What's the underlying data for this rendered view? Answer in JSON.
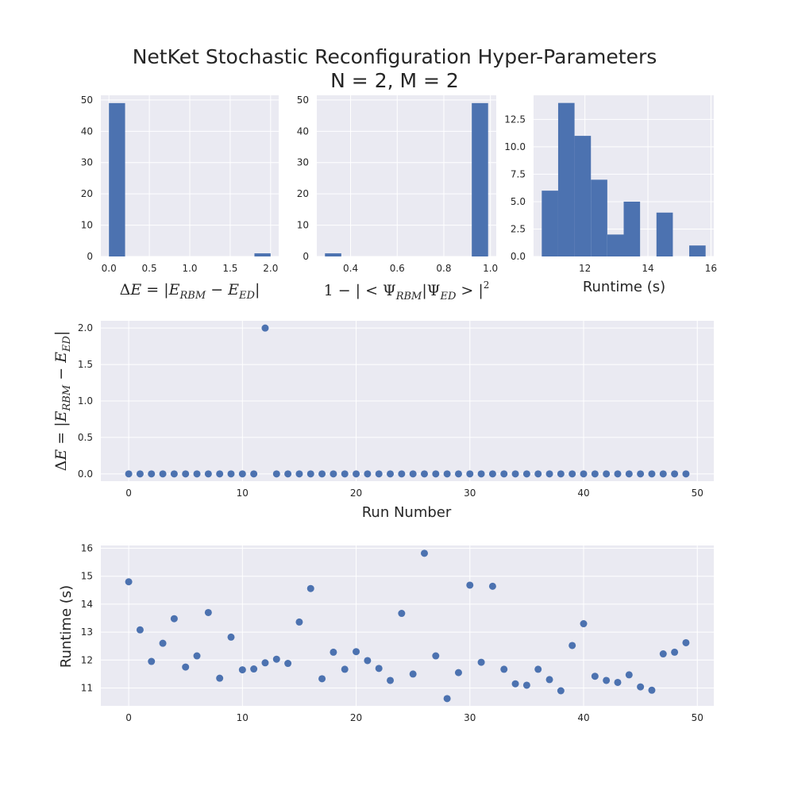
{
  "title": {
    "line1": "NetKet Stochastic Reconfiguration Hyper-Parameters",
    "line2": "N = 2, M = 2"
  },
  "colors": {
    "bar": "#4c72b0",
    "point": "#4c72b0",
    "panel": "#eaeaf2",
    "grid": "#ffffff"
  },
  "labels": {
    "delta_e": "ΔE = |E_RBM − E_ED|",
    "fidelity": "1 − | < Ψ_RBM|Ψ_ED > |²",
    "runtime_x": "Runtime (s)",
    "run_number": "Run Number",
    "runtime_y": "Runtime (s)"
  },
  "chart_data": [
    {
      "type": "bar",
      "name": "hist-delta-e",
      "xlabel": "ΔE = |E_RBM − E_ED|",
      "bin_edges": [
        0.0,
        0.2,
        0.4,
        0.6,
        0.8,
        1.0,
        1.2,
        1.4,
        1.6,
        1.8,
        2.0
      ],
      "counts": [
        49,
        0,
        0,
        0,
        0,
        0,
        0,
        0,
        0,
        1
      ],
      "xlim": [
        -0.1,
        2.1
      ],
      "ylim": [
        0,
        51.5
      ],
      "xticks": [
        0.0,
        0.5,
        1.0,
        1.5,
        2.0
      ],
      "xtick_labels": [
        "0.0",
        "0.5",
        "1.0",
        "1.5",
        "2.0"
      ],
      "yticks": [
        0,
        10,
        20,
        30,
        40,
        50
      ],
      "ytick_labels": [
        "0",
        "10",
        "20",
        "30",
        "40",
        "50"
      ]
    },
    {
      "type": "bar",
      "name": "hist-fidelity",
      "xlabel": "1 − | < Ψ_RBM|Ψ_ED > |²",
      "bin_edges": [
        0.29,
        0.36,
        0.43,
        0.5,
        0.57,
        0.64,
        0.71,
        0.78,
        0.85,
        0.92,
        0.99
      ],
      "counts": [
        1,
        0,
        0,
        0,
        0,
        0,
        0,
        0,
        0,
        49
      ],
      "xlim": [
        0.255,
        1.025
      ],
      "ylim": [
        0,
        51.5
      ],
      "xticks": [
        0.4,
        0.6,
        0.8,
        1.0
      ],
      "xtick_labels": [
        "0.4",
        "0.6",
        "0.8",
        "1.0"
      ],
      "yticks": [
        0,
        10,
        20,
        30,
        40,
        50
      ],
      "ytick_labels": [
        "0",
        "10",
        "20",
        "30",
        "40",
        "50"
      ]
    },
    {
      "type": "bar",
      "name": "hist-runtime",
      "xlabel": "Runtime (s)",
      "bin_edges": [
        10.63,
        11.15,
        11.67,
        12.19,
        12.71,
        13.23,
        13.75,
        14.27,
        14.79,
        15.31,
        15.83
      ],
      "counts": [
        6,
        14,
        11,
        7,
        2,
        5,
        0,
        4,
        0,
        1
      ],
      "xlim": [
        10.37,
        16.09
      ],
      "ylim": [
        0,
        14.7
      ],
      "xticks": [
        12,
        14,
        16
      ],
      "xtick_labels": [
        "12",
        "14",
        "16"
      ],
      "yticks": [
        0.0,
        2.5,
        5.0,
        7.5,
        10.0,
        12.5
      ],
      "ytick_labels": [
        "0.0",
        "2.5",
        "5.0",
        "7.5",
        "10.0",
        "12.5"
      ]
    },
    {
      "type": "scatter",
      "name": "scatter-delta-e",
      "xlabel": "Run Number",
      "ylabel": "ΔE = |E_RBM − E_ED|",
      "x": [
        0,
        1,
        2,
        3,
        4,
        5,
        6,
        7,
        8,
        9,
        10,
        11,
        12,
        13,
        14,
        15,
        16,
        17,
        18,
        19,
        20,
        21,
        22,
        23,
        24,
        25,
        26,
        27,
        28,
        29,
        30,
        31,
        32,
        33,
        34,
        35,
        36,
        37,
        38,
        39,
        40,
        41,
        42,
        43,
        44,
        45,
        46,
        47,
        48,
        49
      ],
      "y": [
        0,
        0,
        0,
        0,
        0,
        0,
        0,
        0,
        0,
        0,
        0,
        0,
        2.0,
        0,
        0,
        0,
        0,
        0,
        0,
        0,
        0,
        0,
        0,
        0,
        0,
        0,
        0,
        0,
        0,
        0,
        0,
        0,
        0,
        0,
        0,
        0,
        0,
        0,
        0,
        0,
        0,
        0,
        0,
        0,
        0,
        0,
        0,
        0,
        0,
        0
      ],
      "xlim": [
        -2.45,
        51.45
      ],
      "ylim": [
        -0.1,
        2.1
      ],
      "xticks": [
        0,
        10,
        20,
        30,
        40,
        50
      ],
      "xtick_labels": [
        "0",
        "10",
        "20",
        "30",
        "40",
        "50"
      ],
      "yticks": [
        0.0,
        0.5,
        1.0,
        1.5,
        2.0
      ],
      "ytick_labels": [
        "0.0",
        "0.5",
        "1.0",
        "1.5",
        "2.0"
      ]
    },
    {
      "type": "scatter",
      "name": "scatter-runtime",
      "ylabel": "Runtime (s)",
      "x": [
        0,
        1,
        2,
        3,
        4,
        5,
        6,
        7,
        8,
        9,
        10,
        11,
        12,
        13,
        14,
        15,
        16,
        17,
        18,
        19,
        20,
        21,
        22,
        23,
        24,
        25,
        26,
        27,
        28,
        29,
        30,
        31,
        32,
        33,
        34,
        35,
        36,
        37,
        38,
        39,
        40,
        41,
        42,
        43,
        44,
        45,
        46,
        47,
        48,
        49
      ],
      "y": [
        14.8,
        13.08,
        11.95,
        12.6,
        13.48,
        11.75,
        12.15,
        13.7,
        11.35,
        12.82,
        11.65,
        11.68,
        11.9,
        12.03,
        11.88,
        13.36,
        14.56,
        11.33,
        12.28,
        11.67,
        12.3,
        11.98,
        11.7,
        11.27,
        13.67,
        11.5,
        15.82,
        12.15,
        10.62,
        11.55,
        14.68,
        11.92,
        14.64,
        11.67,
        11.15,
        11.1,
        11.67,
        11.3,
        10.9,
        12.52,
        13.3,
        11.42,
        11.27,
        11.2,
        11.47,
        11.04,
        10.92,
        12.22,
        12.28,
        12.62
      ],
      "xlim": [
        -2.45,
        51.45
      ],
      "ylim": [
        10.36,
        16.1
      ],
      "xticks": [
        0,
        10,
        20,
        30,
        40,
        50
      ],
      "xtick_labels": [
        "0",
        "10",
        "20",
        "30",
        "40",
        "50"
      ],
      "yticks": [
        11,
        12,
        13,
        14,
        15,
        16
      ],
      "ytick_labels": [
        "11",
        "12",
        "13",
        "14",
        "15",
        "16"
      ]
    }
  ]
}
